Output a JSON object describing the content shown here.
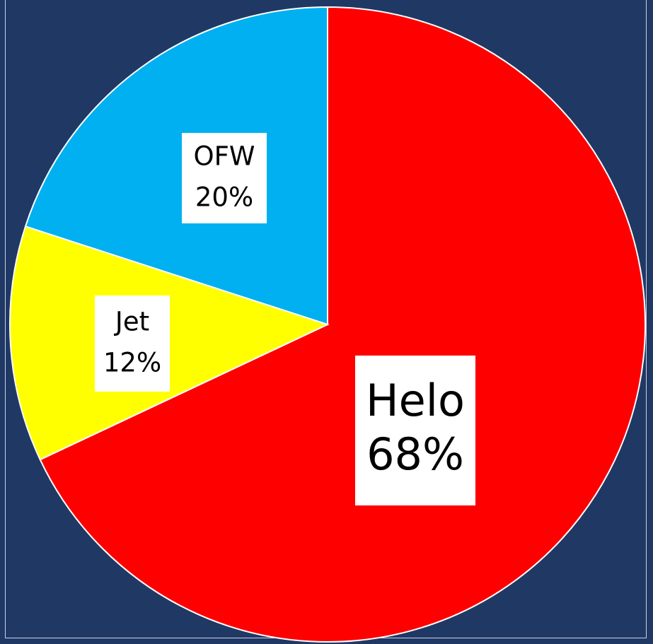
{
  "chart_data": {
    "type": "pie",
    "categories": [
      "Helo",
      "Jet",
      "OFW"
    ],
    "values": [
      68,
      12,
      20
    ],
    "value_labels": [
      "68%",
      "12%",
      "20%"
    ],
    "colors": {
      "Helo": "#ff0000",
      "Jet": "#ffff00",
      "OFW": "#00b0f0"
    },
    "start_angle_deg": 0,
    "direction": "clockwise",
    "legend": "none"
  },
  "colors": {
    "background": "#203864",
    "border": "#c9d3e6",
    "slice_outline": "#ffffff",
    "label_box": "#ffffff"
  }
}
